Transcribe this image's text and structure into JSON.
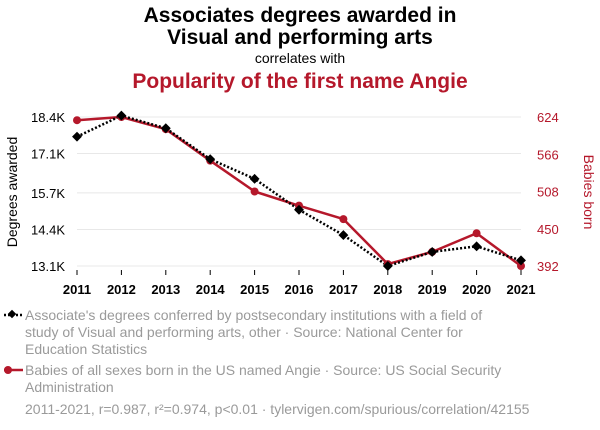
{
  "header": {
    "title_line1": "Associates degrees awarded in",
    "title_line2": "Visual and performing arts",
    "connector": "correlates with",
    "title2": "Popularity of the first name Angie"
  },
  "colors": {
    "series1": "#000000",
    "series2": "#b5182b"
  },
  "chart_data": {
    "type": "line",
    "x": [
      2011,
      2012,
      2013,
      2014,
      2015,
      2016,
      2017,
      2018,
      2019,
      2020,
      2021
    ],
    "x_tick_labels": [
      "2011",
      "2012",
      "2013",
      "2014",
      "2015",
      "2016",
      "2017",
      "2018",
      "2019",
      "2020",
      "2021"
    ],
    "left_axis": {
      "label": "Degrees awarded",
      "ylim": [
        13100,
        18400
      ],
      "ticks": [
        13100,
        14400,
        15700,
        17100,
        18400
      ],
      "tick_labels": [
        "13.1K",
        "14.4K",
        "15.7K",
        "17.1K",
        "18.4K"
      ]
    },
    "right_axis": {
      "label": "Babies born",
      "ylim": [
        392,
        624
      ],
      "ticks": [
        392,
        450,
        508,
        566,
        624
      ],
      "tick_labels": [
        "392",
        "450",
        "508",
        "566",
        "624"
      ]
    },
    "grid": true,
    "series": [
      {
        "axis": "left",
        "style": "dotted",
        "marker": "diamond",
        "values": [
          17700,
          18450,
          18000,
          16900,
          16200,
          15100,
          14200,
          13100,
          13600,
          13800,
          13300
        ]
      },
      {
        "axis": "right",
        "style": "solid",
        "marker": "circle",
        "values": [
          619,
          624,
          605,
          556,
          508,
          486,
          465,
          395,
          414,
          443,
          392
        ]
      }
    ]
  },
  "legend": {
    "item1_lines": [
      "Associate's degrees conferred by postsecondary institutions with a field of",
      "study of Visual and performing arts, other · Source: National Center for",
      "Education Statistics"
    ],
    "item2_lines": [
      "Babies of all sexes born in the US named Angie · Source: US Social Security",
      "Administration"
    ]
  },
  "footer": "2011-2021, r=0.987, r²=0.974, p<0.01 · tylervigen.com/spurious/correlation/42155"
}
